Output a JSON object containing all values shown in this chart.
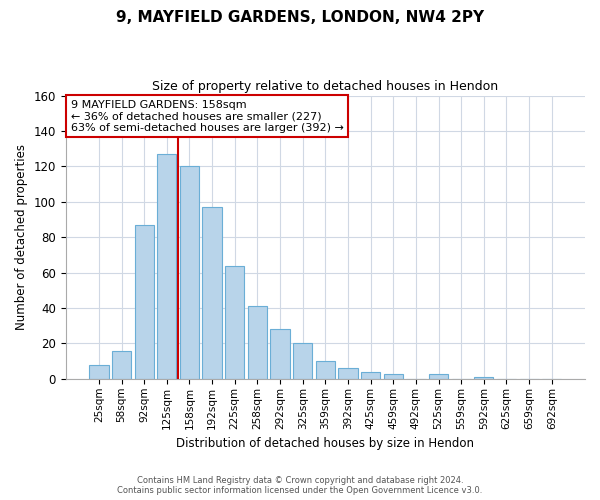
{
  "title": "9, MAYFIELD GARDENS, LONDON, NW4 2PY",
  "subtitle": "Size of property relative to detached houses in Hendon",
  "xlabel": "Distribution of detached houses by size in Hendon",
  "ylabel": "Number of detached properties",
  "bar_labels": [
    "25sqm",
    "58sqm",
    "92sqm",
    "125sqm",
    "158sqm",
    "192sqm",
    "225sqm",
    "258sqm",
    "292sqm",
    "325sqm",
    "359sqm",
    "392sqm",
    "425sqm",
    "459sqm",
    "492sqm",
    "525sqm",
    "559sqm",
    "592sqm",
    "625sqm",
    "659sqm",
    "692sqm"
  ],
  "bar_values": [
    8,
    16,
    87,
    127,
    120,
    97,
    64,
    41,
    28,
    20,
    10,
    6,
    4,
    3,
    0,
    3,
    0,
    1,
    0,
    0,
    0
  ],
  "bar_color": "#b8d4ea",
  "bar_edge_color": "#6aaed6",
  "marker_index": 3,
  "marker_line_color": "#cc0000",
  "ylim": [
    0,
    160
  ],
  "yticks": [
    0,
    20,
    40,
    60,
    80,
    100,
    120,
    140,
    160
  ],
  "annotation_title": "9 MAYFIELD GARDENS: 158sqm",
  "annotation_line1": "← 36% of detached houses are smaller (227)",
  "annotation_line2": "63% of semi-detached houses are larger (392) →",
  "annotation_box_color": "#ffffff",
  "annotation_box_edge_color": "#cc0000",
  "footer_line1": "Contains HM Land Registry data © Crown copyright and database right 2024.",
  "footer_line2": "Contains public sector information licensed under the Open Government Licence v3.0.",
  "background_color": "#ffffff",
  "grid_color": "#d0d8e4"
}
